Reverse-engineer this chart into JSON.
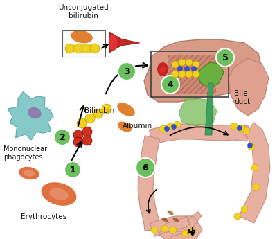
{
  "bg_color": "#ffffff",
  "fig_width": 4.0,
  "fig_height": 3.45,
  "dpi": 100,
  "labels": {
    "unconjugated_bilirubin": "Unconjugated\nbilirubin",
    "bilirubin": "Bilirubin",
    "albumin": "Albumin",
    "mononuclear": "Mononuclear\nphagocytes",
    "erythrocytes": "Erythrocytes",
    "bile_duct": "Bile\nduct",
    "num1": "1",
    "num2": "2",
    "num3": "3",
    "num4": "4",
    "num5": "5",
    "num6": "6"
  },
  "colors": {
    "circle_green": "#6abf5e",
    "erythrocyte": "#e07040",
    "teal_cell": "#70c0c0",
    "purple_nucleus": "#9060a0",
    "liver": "#d4907a",
    "stomach": "#e0a090",
    "intestine": "#e8b0a0",
    "bile_duct_green": "#40a060",
    "gallbladder": "#80c060",
    "yellow_bilirubin": "#f0d020",
    "orange_albumin": "#e08030",
    "red_cell": "#d03020",
    "text_color": "#101010",
    "funnel_dark": "#c01010",
    "funnel_light": "#ff4040"
  }
}
